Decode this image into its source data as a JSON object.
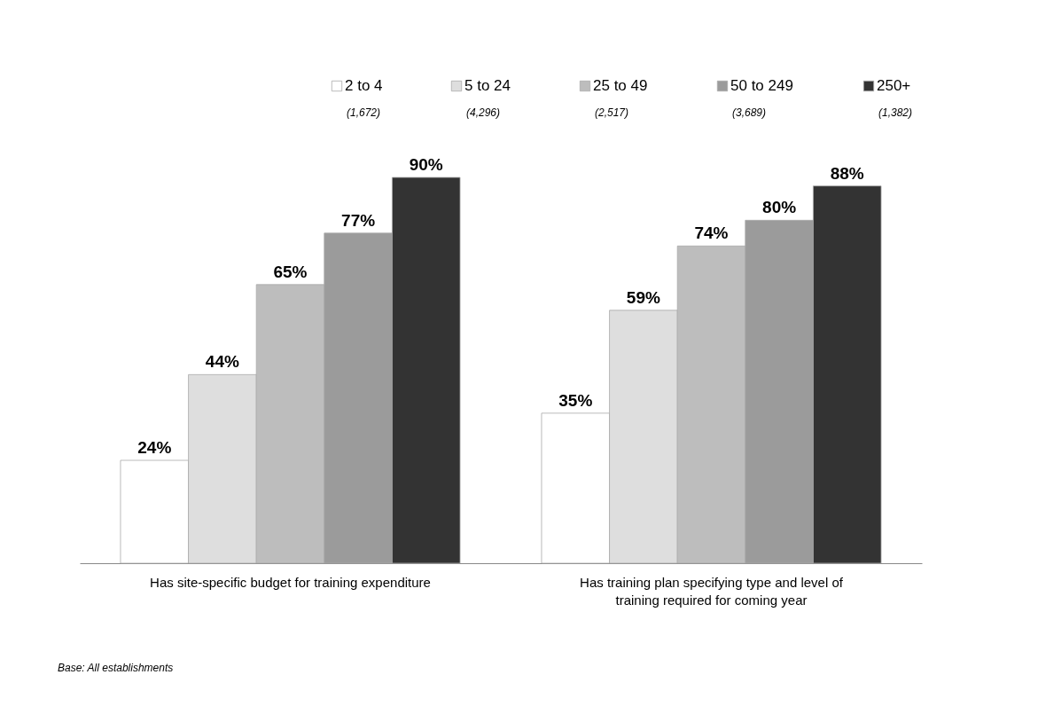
{
  "chart_data": {
    "type": "bar",
    "categories": [
      "Has site-specific budget for training expenditure",
      "Has training plan specifying type and level of training required for coming year"
    ],
    "series": [
      {
        "name": "2 to 4",
        "color": "#ffffff",
        "values": [
          24,
          35
        ],
        "value_labels": [
          "24%",
          "35%"
        ]
      },
      {
        "name": "5 to 24",
        "color": "#dedede",
        "values": [
          44,
          59
        ],
        "value_labels": [
          "44%",
          "59%"
        ]
      },
      {
        "name": "25 to 49",
        "color": "#bdbdbd",
        "values": [
          65,
          74
        ],
        "value_labels": [
          "65%",
          "74%"
        ]
      },
      {
        "name": "50 to 249",
        "color": "#9b9b9b",
        "values": [
          77,
          80
        ],
        "value_labels": [
          "77%",
          "80%"
        ]
      },
      {
        "name": "250+",
        "color": "#333333",
        "values": [
          90,
          88
        ],
        "value_labels": [
          "90%",
          "88%"
        ]
      }
    ],
    "annotations": [
      "(1,672)",
      "(4,296)",
      "(2,517)",
      "(3,689)",
      "(1,382)",
      "Base: All establishments"
    ],
    "legend": "top",
    "grid": false
  }
}
